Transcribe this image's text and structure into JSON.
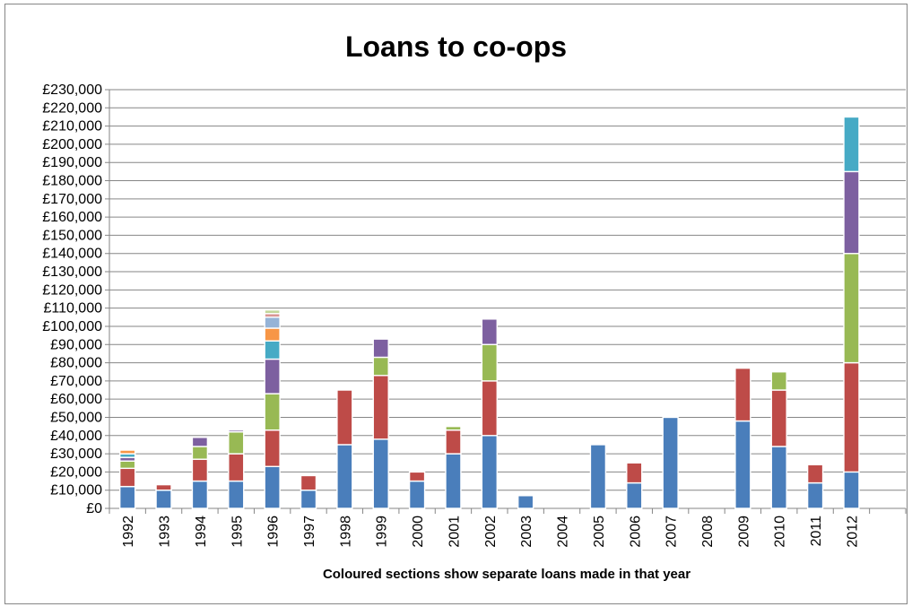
{
  "colors": {
    "palette": [
      "#4A7EBB",
      "#BE4B48",
      "#98B954",
      "#7D60A0",
      "#46AAC5",
      "#F79646",
      "#95B3D7",
      "#D99694",
      "#C3D69B"
    ],
    "gridline": "#868686",
    "axis": "#868686"
  },
  "chart_data": {
    "type": "bar",
    "stacked": true,
    "title": "Loans to co-ops",
    "xlabel": "Coloured sections show separate loans made in that year",
    "ylabel": "",
    "ylim": [
      0,
      230000
    ],
    "ytick_step": 10000,
    "ytick_format": "£#,##0",
    "grid": true,
    "legend": "none",
    "categories": [
      "1992",
      "1993",
      "1994",
      "1995",
      "1996",
      "1997",
      "1998",
      "1999",
      "2000",
      "2001",
      "2002",
      "2003",
      "2004",
      "2005",
      "2006",
      "2007",
      "2008",
      "2009",
      "2010",
      "2011",
      "2012"
    ],
    "stacks": [
      [
        12000,
        10000,
        4000,
        2000,
        2000,
        2000
      ],
      [
        10000,
        3000
      ],
      [
        15000,
        12000,
        7000,
        5000
      ],
      [
        15000,
        15000,
        12000,
        1000
      ],
      [
        23000,
        20000,
        20000,
        19000,
        10000,
        7000,
        6000,
        2000,
        2000
      ],
      [
        10000,
        8000
      ],
      [
        35000,
        30000
      ],
      [
        38000,
        35000,
        10000,
        10000
      ],
      [
        15000,
        5000
      ],
      [
        30000,
        13000,
        2000
      ],
      [
        40000,
        30000,
        20000,
        14000
      ],
      [
        7000
      ],
      [],
      [
        35000
      ],
      [
        14000,
        11000
      ],
      [
        50000
      ],
      [],
      [
        48000,
        29000
      ],
      [
        34000,
        31000,
        10000
      ],
      [
        14000,
        10000
      ],
      [
        20000,
        60000,
        60000,
        45000,
        30000
      ]
    ]
  }
}
